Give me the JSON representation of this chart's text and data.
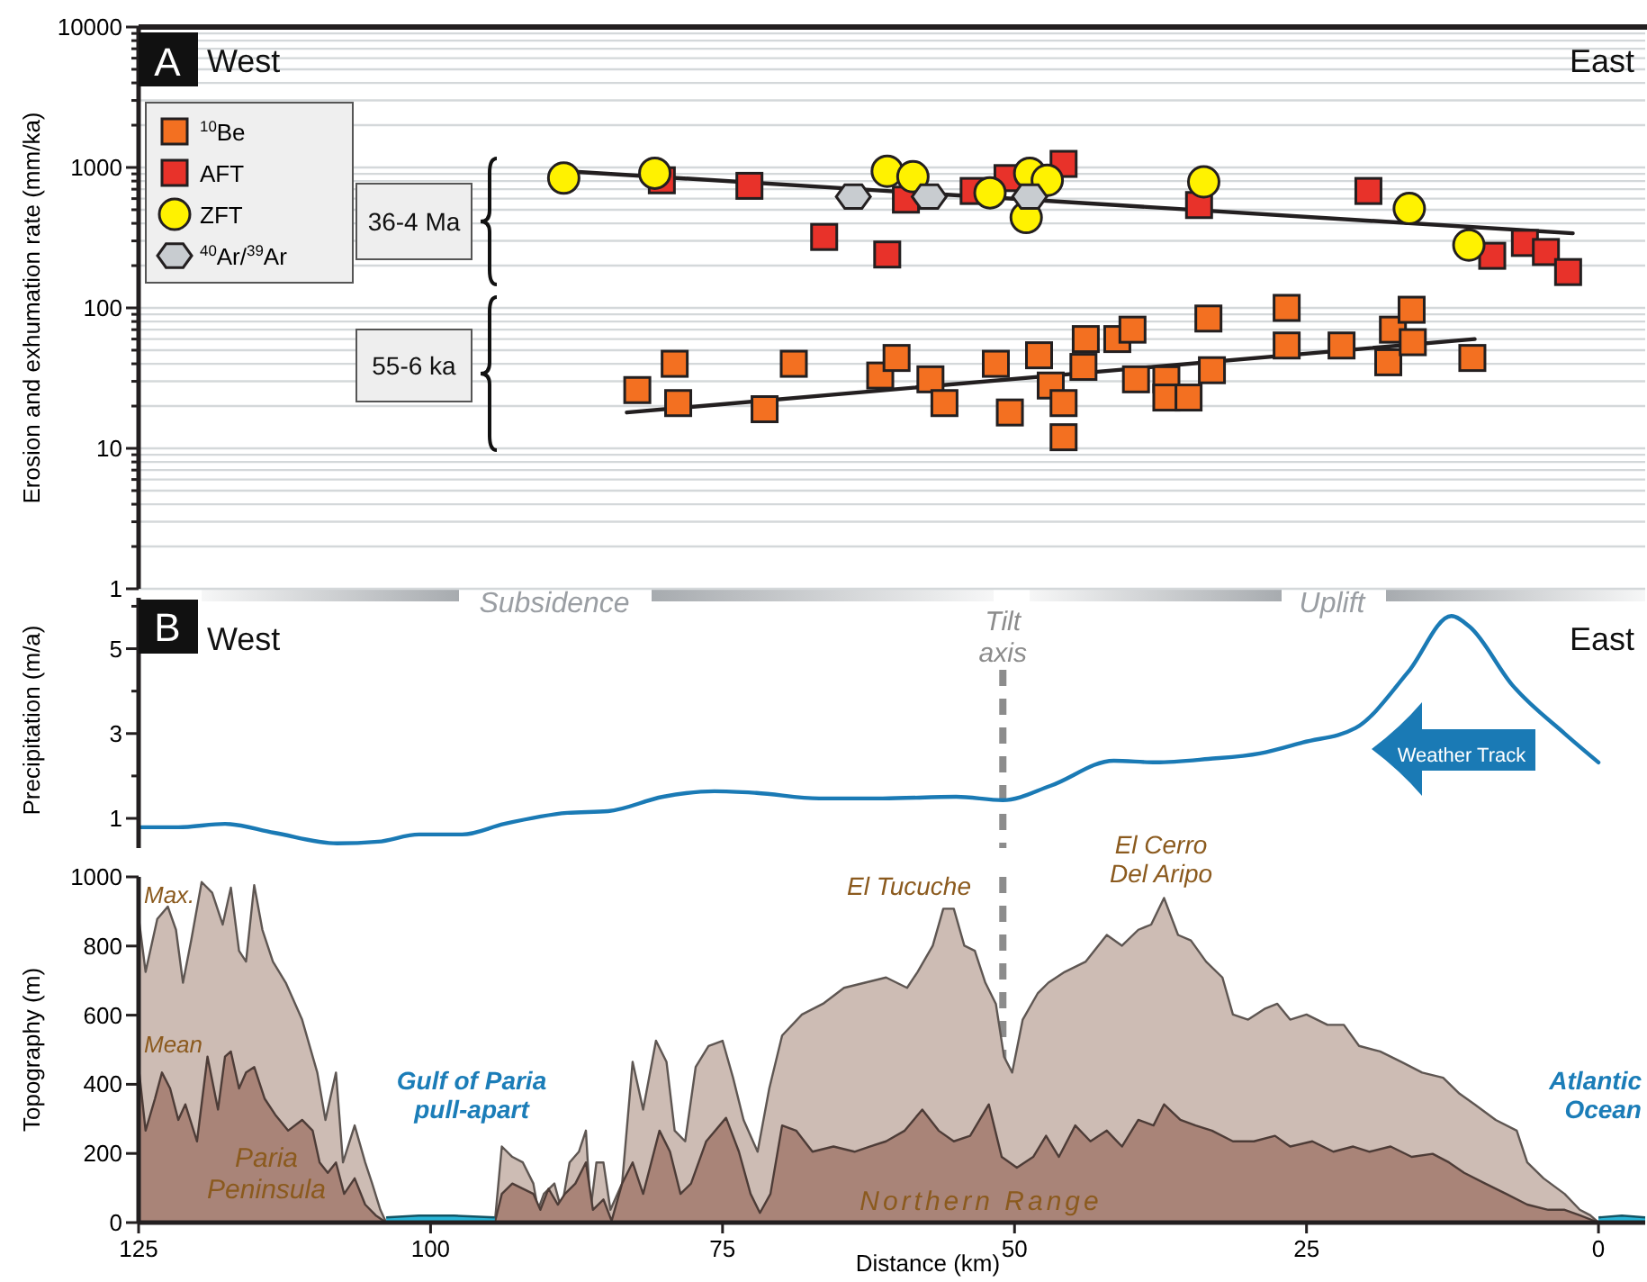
{
  "chart_data": [
    {
      "type": "scatter",
      "ylabel": "Erosion and exhumation rate (mm/ka)",
      "log": "y",
      "xlim": [
        125,
        -4
      ],
      "ylim": [
        1,
        10000
      ],
      "yticks": [
        1,
        {
          "value": 2,
          "label": null
        },
        {
          "value": 3,
          "label": null
        },
        {
          "value": 4,
          "label": null
        },
        {
          "value": 5,
          "label": null
        },
        {
          "value": 6,
          "label": null
        },
        {
          "value": 7,
          "label": null
        },
        {
          "value": 8,
          "label": null
        },
        {
          "value": 9,
          "label": null
        },
        10,
        {
          "value": 20,
          "label": null
        },
        {
          "value": 30,
          "label": null
        },
        {
          "value": 40,
          "label": null
        },
        {
          "value": 50,
          "label": null
        },
        {
          "value": 60,
          "label": null
        },
        {
          "value": 70,
          "label": null
        },
        {
          "value": 80,
          "label": null
        },
        {
          "value": 90,
          "label": null
        },
        100,
        {
          "value": 200,
          "label": null
        },
        {
          "value": 300,
          "label": null
        },
        {
          "value": 400,
          "label": null
        },
        {
          "value": 500,
          "label": null
        },
        {
          "value": 600,
          "label": null
        },
        {
          "value": 700,
          "label": null
        },
        {
          "value": 800,
          "label": null
        },
        {
          "value": 900,
          "label": null
        },
        1000,
        {
          "value": 2000,
          "label": null
        },
        {
          "value": 3000,
          "label": null
        },
        {
          "value": 4000,
          "label": null
        },
        {
          "value": 5000,
          "label": null
        },
        {
          "value": 6000,
          "label": null
        },
        {
          "value": 7000,
          "label": null
        },
        {
          "value": 8000,
          "label": null
        },
        {
          "value": 9000,
          "label": null
        },
        10000
      ],
      "grid": "y",
      "tick_labels": "y",
      "legend": "top left",
      "annotations": [
        "A",
        "West",
        "East",
        "36-4 Ma",
        "55-6 ka"
      ],
      "series": [
        {
          "type": "line",
          "color": "#231f20",
          "x": [
            88.3,
            2.2
          ],
          "values": [
            940,
            340
          ]
        },
        {
          "type": "line",
          "color": "#231f20",
          "x": [
            83.2,
            10.6
          ],
          "values": [
            18,
            60
          ]
        },
        {
          "name": "$^{10}$Be",
          "marker": "square",
          "color": "#f37021",
          "x": [
            82.3,
            79.1,
            78.8,
            68.9,
            71.4,
            61.5,
            60.1,
            57.2,
            56.0,
            51.6,
            50.4,
            47.9,
            46.9,
            45.8,
            45.8,
            44.1,
            43.9,
            41.2,
            39.9,
            39.6,
            37.0,
            37.0,
            35.1,
            33.1,
            33.4,
            26.7,
            26.7,
            22.0,
            18.0,
            17.6,
            16.0,
            15.9,
            10.8
          ],
          "values": [
            26,
            40,
            21,
            40,
            19,
            33,
            44,
            31,
            21,
            40,
            18,
            46,
            28,
            21,
            12,
            38,
            60,
            60,
            70,
            31,
            31,
            23,
            23,
            36,
            84,
            100,
            54,
            54,
            41,
            70,
            97,
            57,
            44
          ]
        },
        {
          "name": "AFT",
          "marker": "square",
          "color": "#e8322a",
          "x": [
            80.2,
            72.7,
            66.3,
            60.9,
            59.3,
            53.5,
            50.6,
            45.8,
            34.2,
            19.7,
            9.1,
            6.3,
            4.5,
            2.6
          ],
          "values": [
            810,
            740,
            320,
            240,
            590,
            680,
            840,
            1060,
            540,
            680,
            235,
            290,
            250,
            180
          ]
        },
        {
          "name": "ZFT",
          "marker": "circle",
          "color": "#fff200",
          "x": [
            88.6,
            80.8,
            60.9,
            58.7,
            52.1,
            48.7,
            47.2,
            49.0,
            33.8,
            16.2,
            11.1
          ],
          "values": [
            840,
            910,
            940,
            860,
            660,
            910,
            810,
            440,
            790,
            510,
            280
          ]
        },
        {
          "name": "$^{40}$Ar/$^{39}$Ar",
          "color": "#c8ccd0",
          "x": [
            63.8,
            57.3,
            48.7
          ],
          "values": [
            620,
            620,
            620
          ]
        }
      ]
    },
    {
      "type": "line",
      "ylabel": "Precipitation (m/a)",
      "xlim": [
        125,
        -4
      ],
      "ylim": [
        0.3,
        6.2
      ],
      "yticks": [
        1,
        {
          "value": 2,
          "label": null
        },
        3,
        {
          "value": 4,
          "label": null
        },
        5,
        {
          "value": 6,
          "label": null
        }
      ],
      "tick_labels": "y",
      "annotations": [
        "B",
        "West",
        "East",
        "Subsidence",
        "Uplift",
        "Weather Track"
      ],
      "ref_lines": [
        {
          "axis": "x",
          "value": 51,
          "label": "Tilt axis",
          "color": "#8c8c8c",
          "line_style": "dashed"
        }
      ],
      "series": [
        {
          "color": "#1a7ab5",
          "x": [
            124.8,
            121.6,
            117.6,
            113.4,
            108.0,
            104.5,
            101.0,
            97.3,
            93.7,
            88.3,
            84.8,
            80.1,
            75.7,
            72.1,
            66.7,
            61.3,
            55.0,
            51.0,
            46.9,
            41.5,
            37.9,
            33.4,
            29.0,
            25.3,
            20.8,
            16.3,
            12.6,
            11.0,
            7.4,
            2.9,
            0.0
          ],
          "values": [
            0.79,
            0.79,
            0.87,
            0.66,
            0.41,
            0.45,
            0.62,
            0.62,
            0.87,
            1.13,
            1.17,
            1.51,
            1.64,
            1.6,
            1.47,
            1.47,
            1.51,
            1.43,
            1.77,
            2.36,
            2.32,
            2.4,
            2.53,
            2.79,
            3.13,
            4.45,
            5.77,
            5.51,
            4.15,
            3.0,
            2.32
          ]
        }
      ]
    },
    {
      "type": "area",
      "xlabel": "Distance (km)",
      "ylabel": "Topography (m)",
      "xlim": [
        125,
        -4
      ],
      "ylim": [
        0,
        1000
      ],
      "xticks": [
        125,
        100,
        75,
        50,
        25,
        0
      ],
      "yticks": [
        0,
        200,
        400,
        600,
        800,
        1000
      ],
      "annotations": [
        "El Tucuche",
        "El Cerro Del Aripo",
        "Gulf of Paria pull-apart",
        "Atlantic Ocean",
        "Paria Peninsula",
        "Northern Range"
      ],
      "ref_lines": [
        {
          "axis": "x",
          "value": 51,
          "color": "#8c8c8c",
          "line_style": "dashed"
        }
      ],
      "series": [
        {
          "name": "Max.",
          "color": "#cdbcb4",
          "x": [
            125.0,
            124.4,
            123.4,
            122.5,
            121.8,
            121.2,
            120.5,
            119.6,
            118.7,
            117.8,
            117.1,
            116.4,
            115.8,
            115.1,
            114.4,
            113.5,
            112.4,
            111.0,
            109.7,
            109.0,
            108.1,
            107.5,
            106.5,
            105.6,
            105.0,
            104.3,
            103.8,
            94.5,
            93.9,
            93.0,
            92.1,
            91.2,
            90.8,
            90.3,
            89.4,
            88.8,
            88.1,
            87.3,
            86.7,
            86.3,
            85.8,
            85.2,
            84.6,
            83.6,
            82.7,
            81.8,
            80.7,
            79.8,
            79.1,
            78.2,
            77.3,
            76.2,
            75.0,
            74.1,
            73.2,
            72.0,
            71.0,
            69.9,
            68.2,
            66.4,
            64.6,
            62.8,
            61.0,
            59.2,
            58.3,
            57.0,
            56.1,
            55.2,
            54.3,
            53.4,
            52.5,
            51.6,
            50.9,
            50.2,
            49.3,
            48.0,
            47.1,
            45.7,
            43.9,
            42.1,
            40.8,
            39.4,
            38.3,
            37.2,
            36.0,
            34.9,
            33.6,
            32.2,
            31.3,
            30.0,
            28.6,
            27.5,
            26.4,
            25.0,
            23.2,
            21.8,
            20.5,
            18.7,
            16.9,
            15.1,
            13.3,
            11.9,
            10.6,
            8.8,
            7.0,
            6.1,
            4.7,
            2.9,
            1.6,
            0.7,
            0
          ],
          "values": [
            884,
            725,
            878,
            914,
            847,
            694,
            816,
            985,
            954,
            862,
            969,
            786,
            755,
            976,
            847,
            755,
            694,
            587,
            434,
            297,
            434,
            174,
            281,
            174,
            113,
            37,
            0,
            0,
            220,
            190,
            174,
            113,
            37,
            83,
            113,
            37,
            174,
            205,
            266,
            37,
            174,
            174,
            37,
            113,
            465,
            327,
            526,
            465,
            266,
            235,
            450,
            511,
            526,
            419,
            297,
            205,
            388,
            541,
            602,
            633,
            679,
            694,
            709,
            679,
            725,
            801,
            908,
            908,
            801,
            786,
            694,
            633,
            480,
            434,
            587,
            664,
            694,
            725,
            755,
            832,
            801,
            847,
            862,
            939,
            832,
            816,
            755,
            709,
            602,
            587,
            618,
            633,
            587,
            602,
            572,
            572,
            511,
            495,
            465,
            434,
            419,
            373,
            342,
            297,
            266,
            174,
            128,
            83,
            37,
            21,
            0
          ]
        },
        {
          "name": "Mean",
          "color": "#a98478",
          "x": [
            125.0,
            124.4,
            123.6,
            123.0,
            122.3,
            121.6,
            121.0,
            120.0,
            119.1,
            118.2,
            117.6,
            117.1,
            116.4,
            115.8,
            115.1,
            114.2,
            113.3,
            112.2,
            111.0,
            110.1,
            109.5,
            108.8,
            108.1,
            107.4,
            106.5,
            105.6,
            104.7,
            103.8,
            94.5,
            93.9,
            93.0,
            92.1,
            91.2,
            90.6,
            89.9,
            89.1,
            88.5,
            87.6,
            86.7,
            86.1,
            85.2,
            84.5,
            83.6,
            82.7,
            81.8,
            80.4,
            79.5,
            78.6,
            77.7,
            76.4,
            74.7,
            73.6,
            72.6,
            71.8,
            70.9,
            69.9,
            68.7,
            67.3,
            65.5,
            63.7,
            62.4,
            61.0,
            59.4,
            57.9,
            56.5,
            55.2,
            53.8,
            52.2,
            51.1,
            49.8,
            48.4,
            47.3,
            46.2,
            44.8,
            43.5,
            42.1,
            40.8,
            39.4,
            38.1,
            37.2,
            35.8,
            34.5,
            33.1,
            31.3,
            29.5,
            27.7,
            26.4,
            24.5,
            22.7,
            21.0,
            19.6,
            17.8,
            16.0,
            14.2,
            12.8,
            11.5,
            9.7,
            7.9,
            6.1,
            4.3,
            2.9,
            1.6,
            0
          ],
          "values": [
            450,
            266,
            358,
            434,
            388,
            297,
            342,
            235,
            480,
            327,
            480,
            495,
            388,
            434,
            450,
            358,
            312,
            266,
            297,
            266,
            174,
            144,
            174,
            83,
            128,
            52,
            21,
            0,
            0,
            83,
            113,
            98,
            83,
            37,
            98,
            52,
            83,
            113,
            174,
            37,
            67,
            5,
            113,
            174,
            83,
            266,
            205,
            83,
            113,
            235,
            303,
            205,
            83,
            28,
            83,
            281,
            266,
            205,
            220,
            205,
            220,
            235,
            266,
            327,
            266,
            235,
            251,
            342,
            190,
            159,
            190,
            251,
            190,
            281,
            235,
            266,
            220,
            297,
            281,
            342,
            297,
            281,
            266,
            235,
            235,
            251,
            220,
            235,
            205,
            220,
            205,
            220,
            190,
            199,
            174,
            144,
            113,
            83,
            52,
            37,
            37,
            21,
            0
          ]
        },
        {
          "color": "#29b6d8",
          "x": [
            103.8,
            101,
            98,
            94.5,
            50,
            0,
            -2,
            -4
          ],
          "values": [
            15,
            20,
            20,
            15,
            null,
            15,
            20,
            15
          ]
        }
      ]
    }
  ]
}
